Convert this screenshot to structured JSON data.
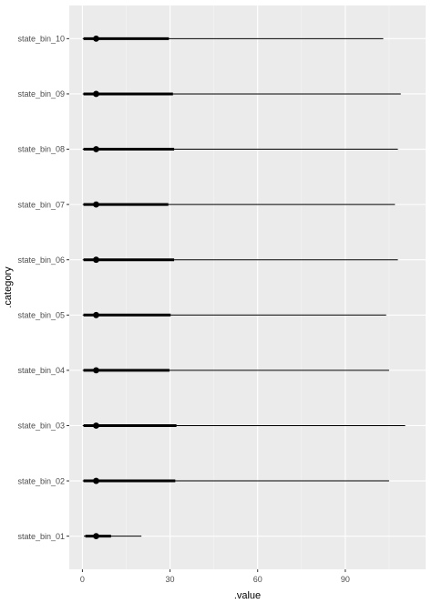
{
  "chart_data": {
    "type": "interval-point",
    "x_label": ".value",
    "y_label": ".category",
    "x_ticks": [
      0,
      30,
      60,
      90
    ],
    "xlim": [
      -4.5,
      117.5
    ],
    "grid": true,
    "categories": [
      "state_bin_01",
      "state_bin_02",
      "state_bin_03",
      "state_bin_04",
      "state_bin_05",
      "state_bin_06",
      "state_bin_07",
      "state_bin_08",
      "state_bin_09",
      "state_bin_10"
    ],
    "series": [
      {
        "category": "state_bin_01",
        "point": 4.7,
        "inner": [
          1.0,
          9.8
        ],
        "outer": [
          0.5,
          20.2
        ]
      },
      {
        "category": "state_bin_02",
        "point": 4.7,
        "inner": [
          0.4,
          31.8
        ],
        "outer": [
          0.1,
          105.0
        ]
      },
      {
        "category": "state_bin_03",
        "point": 4.7,
        "inner": [
          0.4,
          32.2
        ],
        "outer": [
          0.1,
          110.5
        ]
      },
      {
        "category": "state_bin_04",
        "point": 4.7,
        "inner": [
          0.4,
          29.8
        ],
        "outer": [
          0.1,
          105.0
        ]
      },
      {
        "category": "state_bin_05",
        "point": 4.7,
        "inner": [
          0.4,
          30.2
        ],
        "outer": [
          0.1,
          104.0
        ]
      },
      {
        "category": "state_bin_06",
        "point": 4.7,
        "inner": [
          0.4,
          31.4
        ],
        "outer": [
          0.1,
          108.0
        ]
      },
      {
        "category": "state_bin_07",
        "point": 4.7,
        "inner": [
          0.4,
          29.4
        ],
        "outer": [
          0.1,
          107.0
        ]
      },
      {
        "category": "state_bin_08",
        "point": 4.7,
        "inner": [
          0.4,
          31.4
        ],
        "outer": [
          0.1,
          108.0
        ]
      },
      {
        "category": "state_bin_09",
        "point": 4.7,
        "inner": [
          0.4,
          31.0
        ],
        "outer": [
          0.1,
          109.0
        ]
      },
      {
        "category": "state_bin_10",
        "point": 4.7,
        "inner": [
          0.4,
          29.6
        ],
        "outer": [
          0.1,
          103.0
        ]
      }
    ],
    "colors": {
      "panel_background": "#ebebeb",
      "grid_major": "#ffffff",
      "grid_minor": "#f5f5f5",
      "marks": "#000000",
      "tick_text": "#4d4d4d",
      "tick_marks": "#333333"
    }
  }
}
